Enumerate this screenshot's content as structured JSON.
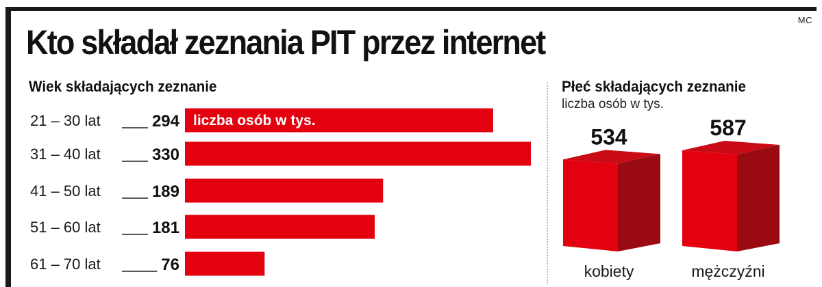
{
  "header": {
    "title": "Kto składał zeznania PIT przez internet",
    "credit": "MC"
  },
  "colors": {
    "bar": "#e3000f",
    "cube_front": "#e3000f",
    "cube_top": "#c90b16",
    "cube_side": "#9a0a12"
  },
  "chart_data": [
    {
      "type": "bar",
      "orientation": "horizontal",
      "title": "Wiek składających zeznanie",
      "bar_caption": "liczba osób w tys.",
      "categories": [
        "21 – 30 lat",
        "31 – 40 lat",
        "41 – 50 lat",
        "51 – 60 lat",
        "61 – 70 lat"
      ],
      "values": [
        294,
        330,
        189,
        181,
        76
      ],
      "xlim": [
        0,
        330
      ]
    },
    {
      "type": "bar",
      "style": "3d-cube",
      "title": "Płeć składających zeznanie",
      "unit": "liczba osób w tys.",
      "categories": [
        "kobiety",
        "mężczyźni"
      ],
      "values": [
        534,
        587
      ]
    }
  ]
}
